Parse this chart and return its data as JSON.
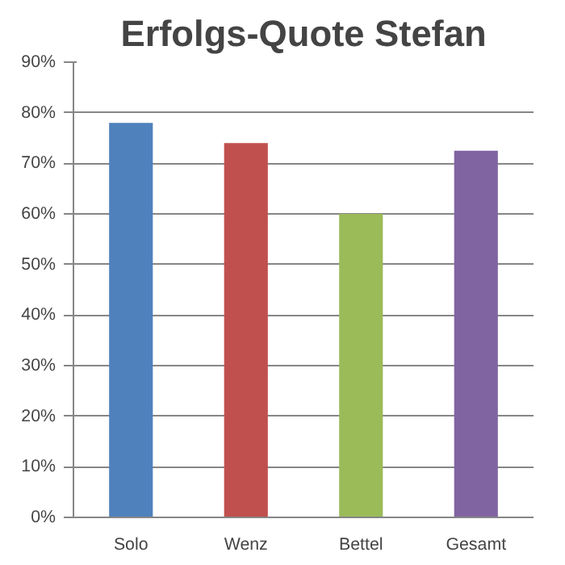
{
  "chart_data": {
    "type": "bar",
    "title": "Erfolgs-Quote Stefan",
    "categories": [
      "Solo",
      "Wenz",
      "Bettel",
      "Gesamt"
    ],
    "values": [
      78,
      74,
      60,
      72.5
    ],
    "colors": [
      "#4f81bd",
      "#c0504d",
      "#9bbb59",
      "#8064a2"
    ],
    "ylim": [
      0,
      90
    ],
    "yticks": [
      {
        "value": 0,
        "label": "0%"
      },
      {
        "value": 10,
        "label": "10%"
      },
      {
        "value": 20,
        "label": "20%"
      },
      {
        "value": 30,
        "label": "30%"
      },
      {
        "value": 40,
        "label": "40%"
      },
      {
        "value": 50,
        "label": "50%"
      },
      {
        "value": 60,
        "label": "60%"
      },
      {
        "value": 70,
        "label": "70%"
      },
      {
        "value": 80,
        "label": "80%"
      },
      {
        "value": 90,
        "label": "90%"
      }
    ],
    "grid": "y"
  }
}
